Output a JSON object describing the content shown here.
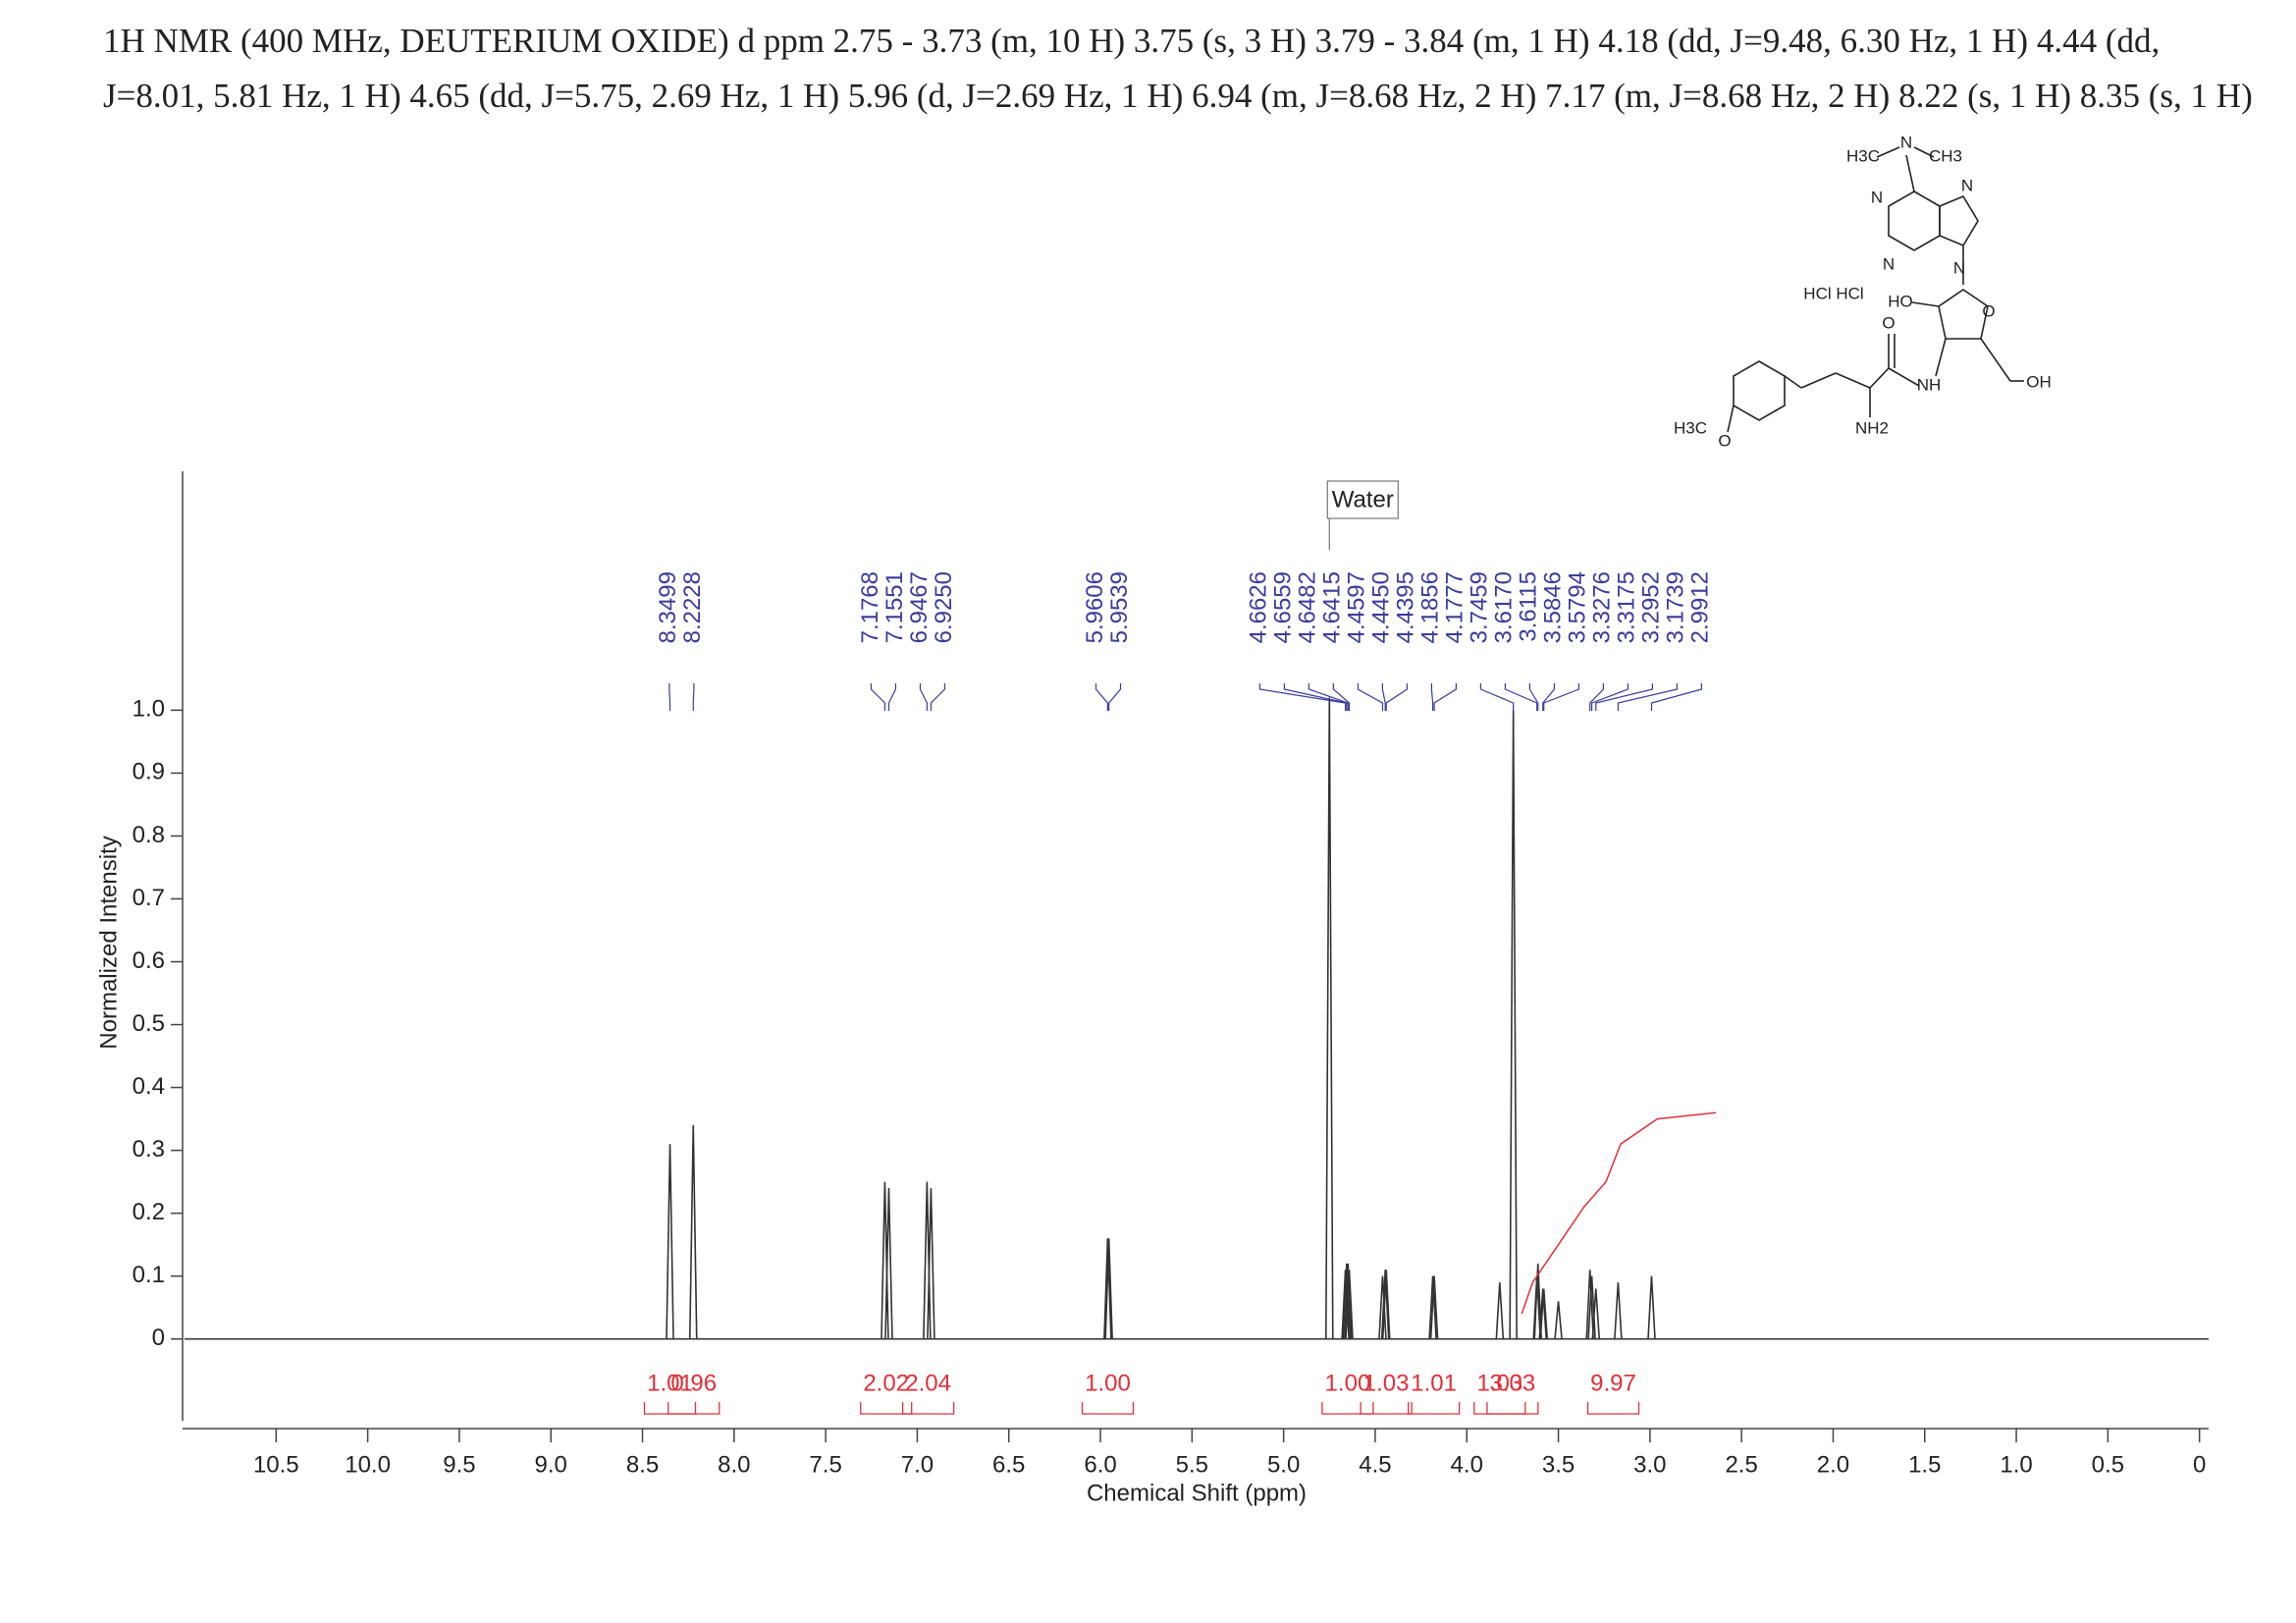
{
  "chart_data": {
    "type": "spectrum",
    "title": "1H NMR (400 MHz, DEUTERIUM OXIDE) d ppm 2.75 - 3.73 (m, 10 H) 3.75 (s, 3 H) 3.79 - 3.84 (m, 1 H) 4.18 (dd, J=9.48, 6.30 Hz, 1 H) 4.44 (dd, J=8.01, 5.81 Hz, 1 H) 4.65 (dd, J=5.75, 2.69 Hz, 1 H) 5.96 (d, J=2.69 Hz, 1 H) 6.94 (m, J=8.68 Hz, 2 H) 7.17 (m, J=8.68 Hz, 2 H) 8.22 (s, 1 H) 8.35 (s, 1 H)",
    "x_label": "Chemical Shift (ppm)",
    "y_label": "Normalized Intensity",
    "xlim": [
      11.0,
      -0.05
    ],
    "xticks": [
      10.5,
      {
        "value": 10,
        "label": "10.0"
      },
      9.5,
      {
        "value": 9,
        "label": "9.0"
      },
      8.5,
      {
        "value": 8,
        "label": "8.0"
      },
      7.5,
      {
        "value": 7,
        "label": "7.0"
      },
      6.5,
      {
        "value": 6,
        "label": "6.0"
      },
      5.5,
      {
        "value": 5,
        "label": "5.0"
      },
      4.5,
      {
        "value": 4,
        "label": "4.0"
      },
      3.5,
      {
        "value": 3,
        "label": "3.0"
      },
      2.5,
      {
        "value": 2,
        "label": "2.0"
      },
      1.5,
      {
        "value": 1,
        "label": "1.0"
      },
      0.5,
      0
    ],
    "ylim": [
      -0.13,
      1.38
    ],
    "yticks": [
      0,
      0.1,
      0.2,
      0.3,
      0.4,
      0.5,
      0.6,
      0.7,
      0.8,
      0.9,
      {
        "value": 1,
        "label": "1.0"
      }
    ],
    "peaks": {
      "color": "#333333",
      "x": [
        8.3499,
        8.2228,
        7.1768,
        7.1551,
        6.9467,
        6.925,
        5.9606,
        5.9539,
        4.75,
        4.6626,
        4.6559,
        4.6482,
        4.6415,
        4.4597,
        4.445,
        4.4395,
        4.1856,
        4.1777,
        3.82,
        3.7459,
        3.617,
        3.6115,
        3.5846,
        3.5794,
        3.5,
        3.3276,
        3.3175,
        3.2952,
        3.1739,
        2.9912
      ],
      "values": [
        0.31,
        0.34,
        0.25,
        0.24,
        0.25,
        0.24,
        0.16,
        0.16,
        1.02,
        0.11,
        0.12,
        0.12,
        0.11,
        0.1,
        0.11,
        0.11,
        0.1,
        0.1,
        0.09,
        1.0,
        0.1,
        0.12,
        0.08,
        0.08,
        0.06,
        0.11,
        0.1,
        0.08,
        0.09,
        0.1
      ]
    },
    "peak_label_color": "#3b3b9c",
    "peak_labels": {
      "x": [
        8.3499,
        8.2228,
        7.1768,
        7.1551,
        6.9467,
        6.925,
        5.9606,
        5.9539,
        4.6626,
        4.6559,
        4.6482,
        4.6415,
        4.4597,
        4.445,
        4.4395,
        4.1856,
        4.1777,
        3.7459,
        3.617,
        3.6115,
        3.5846,
        3.5794,
        3.3276,
        3.3175,
        3.2952,
        3.1739,
        2.9912
      ],
      "labels": [
        "8.3499",
        "8.2228",
        "7.1768",
        "7.1551",
        "6.9467",
        "6.9250",
        "5.9606",
        "5.9539",
        "4.6626",
        "4.6559",
        "4.6482",
        "4.6415",
        "4.4597",
        "4.4450",
        "4.4395",
        "4.1856",
        "4.1777",
        "3.7459",
        "3.6170",
        "3.6115",
        "3.5846",
        "3.5794",
        "3.3276",
        "3.3175",
        "3.2952",
        "3.1739",
        "2.9912"
      ]
    },
    "integrals": {
      "color": "#e0303a",
      "x": [
        8.35,
        8.22,
        7.17,
        6.94,
        5.96,
        4.65,
        4.44,
        4.18,
        3.82,
        3.75,
        3.2
      ],
      "values": [
        1.01,
        0.96,
        2.02,
        2.04,
        1.0,
        1.0,
        1.03,
        1.01,
        1.03,
        3.03,
        9.97
      ],
      "value_labels": [
        "1.01",
        "0.96",
        "2.02",
        "2.04",
        "1.00",
        "1.00",
        "1.03",
        "1.01",
        "1.03",
        "3.03",
        "9.97"
      ]
    },
    "integral_curve": {
      "x": [
        3.7,
        3.64,
        3.5,
        3.36,
        3.24,
        3.16,
        2.96,
        2.64
      ],
      "values": [
        0.04,
        0.09,
        0.15,
        0.21,
        0.25,
        0.31,
        0.35,
        0.36
      ]
    },
    "annotations": [
      {
        "text": "Water",
        "x": 4.75
      }
    ]
  },
  "structure": {
    "labels": [
      "H3C",
      "N",
      "CH3",
      "N",
      "N",
      "N",
      "N",
      "HCl HCl",
      "HO",
      "O",
      "O",
      "NH",
      "OH",
      "NH2",
      "H3C",
      "O"
    ]
  }
}
